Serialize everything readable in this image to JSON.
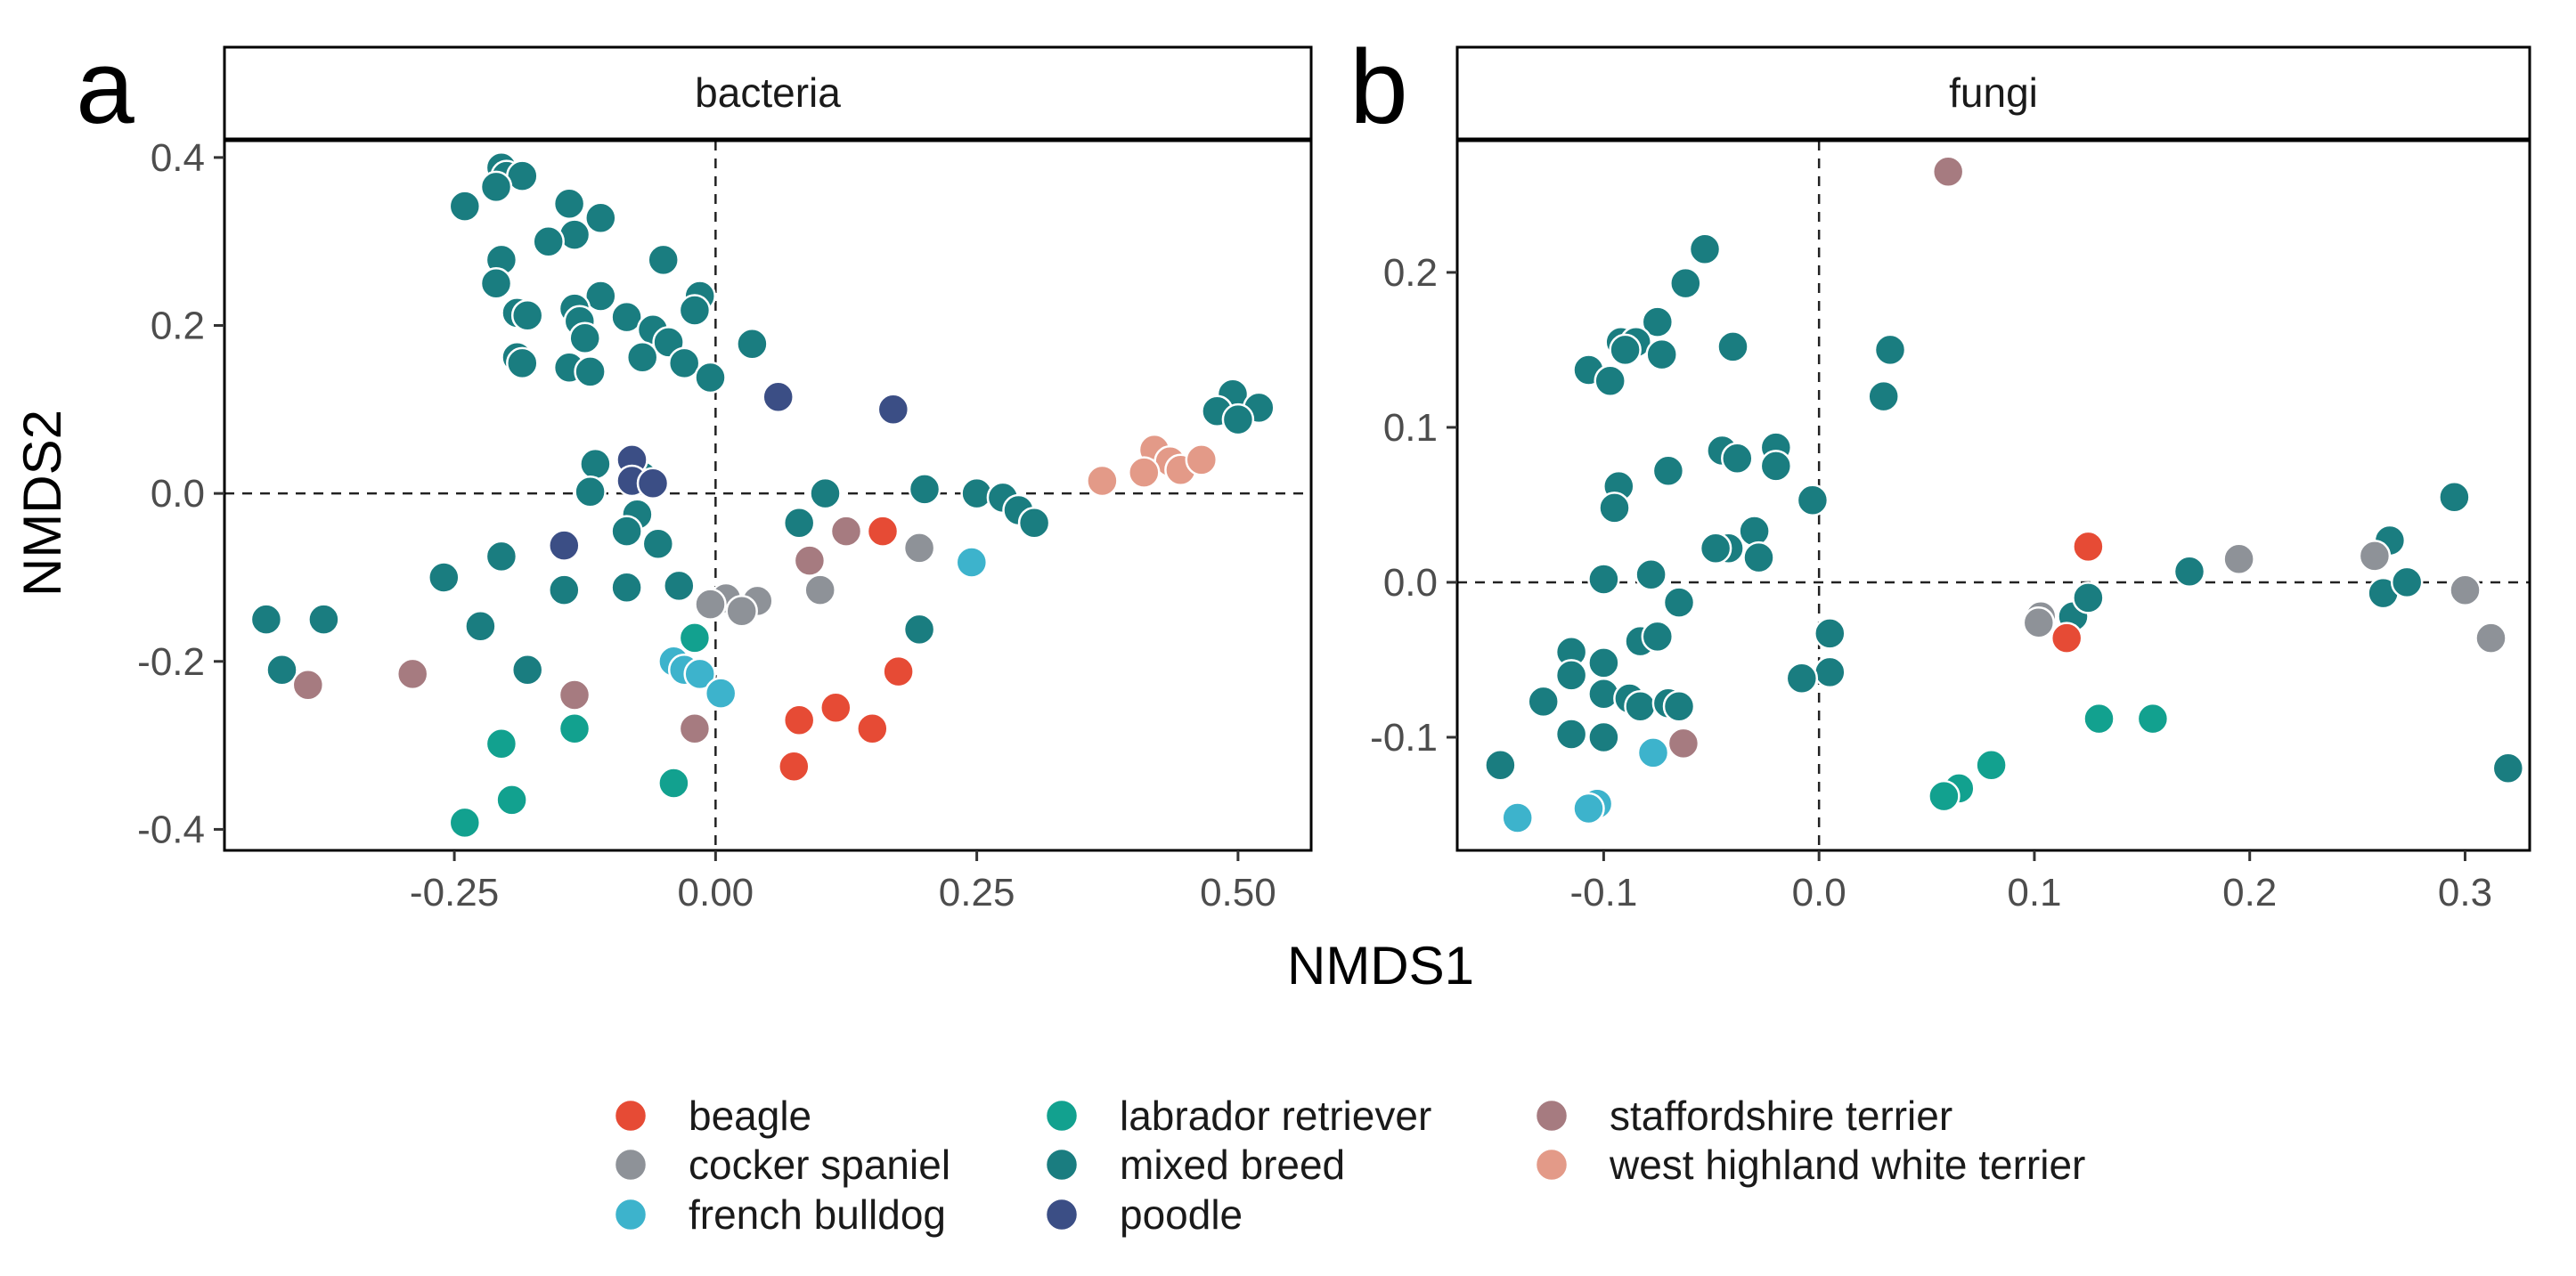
{
  "chart_data": {
    "type": "scatter",
    "xlabel": "NMDS1",
    "ylabel": "NMDS2",
    "legend_placement": "bottom",
    "groups": [
      {
        "key": "beagle",
        "label": "beagle",
        "color": "#E64B35"
      },
      {
        "key": "cocker",
        "label": "cocker spaniel",
        "color": "#8E9298"
      },
      {
        "key": "french",
        "label": "french bulldog",
        "color": "#3DB3CC"
      },
      {
        "key": "lab",
        "label": "labrador retriever",
        "color": "#12A18F"
      },
      {
        "key": "mixed",
        "label": "mixed breed",
        "color": "#1A7D80"
      },
      {
        "key": "poodle",
        "label": "poodle",
        "color": "#3B4E85"
      },
      {
        "key": "staff",
        "label": "staffordshire terrier",
        "color": "#A67B80"
      },
      {
        "key": "westie",
        "label": "west highland white terrier",
        "color": "#E39A88"
      }
    ],
    "panels": [
      {
        "letter": "a",
        "strip": "bacteria",
        "xlim": [
          -0.47,
          0.57
        ],
        "ylim": [
          -0.425,
          0.42
        ],
        "xticks": [
          -0.25,
          0.0,
          0.25,
          0.5
        ],
        "xtick_labels": [
          "-0.25",
          "0.00",
          "0.25",
          "0.50"
        ],
        "yticks": [
          -0.4,
          -0.2,
          0.0,
          0.2,
          0.4
        ],
        "ytick_labels": [
          "-0.4",
          "-0.2",
          "0.0",
          "0.2",
          "0.4"
        ],
        "points": [
          {
            "g": "mixed",
            "x": -0.205,
            "y": 0.388
          },
          {
            "g": "mixed",
            "x": -0.2,
            "y": 0.378
          },
          {
            "g": "mixed",
            "x": -0.185,
            "y": 0.378
          },
          {
            "g": "mixed",
            "x": -0.21,
            "y": 0.365
          },
          {
            "g": "mixed",
            "x": -0.24,
            "y": 0.342
          },
          {
            "g": "mixed",
            "x": -0.14,
            "y": 0.345
          },
          {
            "g": "mixed",
            "x": -0.11,
            "y": 0.328
          },
          {
            "g": "mixed",
            "x": -0.135,
            "y": 0.308
          },
          {
            "g": "mixed",
            "x": -0.16,
            "y": 0.3
          },
          {
            "g": "mixed",
            "x": -0.205,
            "y": 0.278
          },
          {
            "g": "mixed",
            "x": -0.05,
            "y": 0.278
          },
          {
            "g": "mixed",
            "x": -0.21,
            "y": 0.25
          },
          {
            "g": "mixed",
            "x": -0.11,
            "y": 0.235
          },
          {
            "g": "mixed",
            "x": -0.015,
            "y": 0.235
          },
          {
            "g": "mixed",
            "x": -0.135,
            "y": 0.22
          },
          {
            "g": "mixed",
            "x": -0.19,
            "y": 0.215
          },
          {
            "g": "mixed",
            "x": -0.18,
            "y": 0.212
          },
          {
            "g": "mixed",
            "x": -0.13,
            "y": 0.205
          },
          {
            "g": "mixed",
            "x": -0.085,
            "y": 0.21
          },
          {
            "g": "mixed",
            "x": -0.02,
            "y": 0.218
          },
          {
            "g": "mixed",
            "x": -0.06,
            "y": 0.195
          },
          {
            "g": "mixed",
            "x": -0.125,
            "y": 0.185
          },
          {
            "g": "mixed",
            "x": -0.045,
            "y": 0.18
          },
          {
            "g": "mixed",
            "x": 0.035,
            "y": 0.178
          },
          {
            "g": "mixed",
            "x": -0.07,
            "y": 0.162
          },
          {
            "g": "mixed",
            "x": -0.19,
            "y": 0.162
          },
          {
            "g": "mixed",
            "x": -0.185,
            "y": 0.155
          },
          {
            "g": "mixed",
            "x": -0.14,
            "y": 0.15
          },
          {
            "g": "mixed",
            "x": -0.12,
            "y": 0.145
          },
          {
            "g": "mixed",
            "x": -0.03,
            "y": 0.155
          },
          {
            "g": "mixed",
            "x": -0.005,
            "y": 0.138
          },
          {
            "g": "mixed",
            "x": 0.495,
            "y": 0.118
          },
          {
            "g": "mixed",
            "x": 0.52,
            "y": 0.102
          },
          {
            "g": "mixed",
            "x": 0.48,
            "y": 0.098
          },
          {
            "g": "mixed",
            "x": 0.5,
            "y": 0.088
          },
          {
            "g": "mixed",
            "x": -0.115,
            "y": 0.035
          },
          {
            "g": "mixed",
            "x": -0.12,
            "y": 0.002
          },
          {
            "g": "mixed",
            "x": -0.07,
            "y": 0.02
          },
          {
            "g": "mixed",
            "x": -0.075,
            "y": -0.025
          },
          {
            "g": "mixed",
            "x": -0.085,
            "y": -0.045
          },
          {
            "g": "mixed",
            "x": -0.055,
            "y": -0.06
          },
          {
            "g": "mixed",
            "x": 0.105,
            "y": 0.0
          },
          {
            "g": "mixed",
            "x": 0.2,
            "y": 0.005
          },
          {
            "g": "mixed",
            "x": 0.25,
            "y": 0.0
          },
          {
            "g": "mixed",
            "x": 0.275,
            "y": -0.005
          },
          {
            "g": "mixed",
            "x": 0.29,
            "y": -0.02
          },
          {
            "g": "mixed",
            "x": 0.305,
            "y": -0.035
          },
          {
            "g": "mixed",
            "x": 0.08,
            "y": -0.035
          },
          {
            "g": "mixed",
            "x": -0.205,
            "y": -0.075
          },
          {
            "g": "mixed",
            "x": -0.26,
            "y": -0.1
          },
          {
            "g": "mixed",
            "x": -0.145,
            "y": -0.115
          },
          {
            "g": "mixed",
            "x": -0.085,
            "y": -0.112
          },
          {
            "g": "mixed",
            "x": -0.035,
            "y": -0.11
          },
          {
            "g": "mixed",
            "x": -0.225,
            "y": -0.158
          },
          {
            "g": "mixed",
            "x": 0.195,
            "y": -0.162
          },
          {
            "g": "mixed",
            "x": -0.18,
            "y": -0.21
          },
          {
            "g": "mixed",
            "x": -0.43,
            "y": -0.15
          },
          {
            "g": "mixed",
            "x": -0.375,
            "y": -0.15
          },
          {
            "g": "mixed",
            "x": -0.415,
            "y": -0.21
          },
          {
            "g": "poodle",
            "x": 0.06,
            "y": 0.115
          },
          {
            "g": "poodle",
            "x": 0.17,
            "y": 0.1
          },
          {
            "g": "poodle",
            "x": -0.08,
            "y": 0.04
          },
          {
            "g": "poodle",
            "x": -0.08,
            "y": 0.015
          },
          {
            "g": "poodle",
            "x": -0.06,
            "y": 0.012
          },
          {
            "g": "poodle",
            "x": -0.145,
            "y": -0.062
          },
          {
            "g": "westie",
            "x": 0.37,
            "y": 0.015
          },
          {
            "g": "westie",
            "x": 0.42,
            "y": 0.052
          },
          {
            "g": "westie",
            "x": 0.435,
            "y": 0.038
          },
          {
            "g": "westie",
            "x": 0.41,
            "y": 0.025
          },
          {
            "g": "westie",
            "x": 0.445,
            "y": 0.028
          },
          {
            "g": "westie",
            "x": 0.465,
            "y": 0.04
          },
          {
            "g": "staff",
            "x": 0.125,
            "y": -0.045
          },
          {
            "g": "staff",
            "x": 0.09,
            "y": -0.08
          },
          {
            "g": "staff",
            "x": -0.39,
            "y": -0.228
          },
          {
            "g": "staff",
            "x": -0.29,
            "y": -0.215
          },
          {
            "g": "staff",
            "x": -0.135,
            "y": -0.24
          },
          {
            "g": "staff",
            "x": -0.02,
            "y": -0.28
          },
          {
            "g": "beagle",
            "x": 0.16,
            "y": -0.045
          },
          {
            "g": "beagle",
            "x": 0.175,
            "y": -0.212
          },
          {
            "g": "beagle",
            "x": 0.08,
            "y": -0.27
          },
          {
            "g": "beagle",
            "x": 0.115,
            "y": -0.255
          },
          {
            "g": "beagle",
            "x": 0.15,
            "y": -0.28
          },
          {
            "g": "beagle",
            "x": 0.075,
            "y": -0.325
          },
          {
            "g": "cocker",
            "x": 0.195,
            "y": -0.065
          },
          {
            "g": "cocker",
            "x": 0.1,
            "y": -0.115
          },
          {
            "g": "cocker",
            "x": 0.01,
            "y": -0.125
          },
          {
            "g": "cocker",
            "x": 0.04,
            "y": -0.128
          },
          {
            "g": "cocker",
            "x": -0.005,
            "y": -0.132
          },
          {
            "g": "cocker",
            "x": 0.025,
            "y": -0.14
          },
          {
            "g": "french",
            "x": 0.245,
            "y": -0.082
          },
          {
            "g": "french",
            "x": -0.04,
            "y": -0.2
          },
          {
            "g": "french",
            "x": -0.03,
            "y": -0.21
          },
          {
            "g": "french",
            "x": -0.015,
            "y": -0.215
          },
          {
            "g": "french",
            "x": 0.005,
            "y": -0.238
          },
          {
            "g": "lab",
            "x": -0.02,
            "y": -0.172
          },
          {
            "g": "lab",
            "x": -0.135,
            "y": -0.28
          },
          {
            "g": "lab",
            "x": -0.205,
            "y": -0.298
          },
          {
            "g": "lab",
            "x": -0.195,
            "y": -0.365
          },
          {
            "g": "lab",
            "x": -0.24,
            "y": -0.392
          },
          {
            "g": "lab",
            "x": -0.04,
            "y": -0.345
          }
        ]
      },
      {
        "letter": "b",
        "strip": "fungi",
        "xlim": [
          -0.168,
          0.33
        ],
        "ylim": [
          -0.173,
          0.285
        ],
        "xticks": [
          -0.1,
          0.0,
          0.1,
          0.2,
          0.3
        ],
        "xtick_labels": [
          "-0.1",
          "0.0",
          "0.1",
          "0.2",
          "0.3"
        ],
        "yticks": [
          -0.1,
          0.0,
          0.1,
          0.2
        ],
        "ytick_labels": [
          "-0.1",
          "0.0",
          "0.1",
          "0.2"
        ],
        "points": [
          {
            "g": "staff",
            "x": 0.06,
            "y": 0.265
          },
          {
            "g": "staff",
            "x": -0.063,
            "y": -0.104
          },
          {
            "g": "mixed",
            "x": -0.053,
            "y": 0.215
          },
          {
            "g": "mixed",
            "x": -0.062,
            "y": 0.193
          },
          {
            "g": "mixed",
            "x": -0.075,
            "y": 0.168
          },
          {
            "g": "mixed",
            "x": -0.092,
            "y": 0.155
          },
          {
            "g": "mixed",
            "x": -0.085,
            "y": 0.155
          },
          {
            "g": "mixed",
            "x": -0.09,
            "y": 0.15
          },
          {
            "g": "mixed",
            "x": -0.073,
            "y": 0.147
          },
          {
            "g": "mixed",
            "x": -0.04,
            "y": 0.152
          },
          {
            "g": "mixed",
            "x": -0.107,
            "y": 0.137
          },
          {
            "g": "mixed",
            "x": -0.097,
            "y": 0.13
          },
          {
            "g": "mixed",
            "x": 0.033,
            "y": 0.15
          },
          {
            "g": "mixed",
            "x": 0.03,
            "y": 0.12
          },
          {
            "g": "mixed",
            "x": -0.045,
            "y": 0.085
          },
          {
            "g": "mixed",
            "x": -0.038,
            "y": 0.08
          },
          {
            "g": "mixed",
            "x": -0.02,
            "y": 0.087
          },
          {
            "g": "mixed",
            "x": -0.02,
            "y": 0.075
          },
          {
            "g": "mixed",
            "x": -0.07,
            "y": 0.072
          },
          {
            "g": "mixed",
            "x": -0.093,
            "y": 0.062
          },
          {
            "g": "mixed",
            "x": -0.095,
            "y": 0.048
          },
          {
            "g": "mixed",
            "x": -0.003,
            "y": 0.053
          },
          {
            "g": "mixed",
            "x": -0.042,
            "y": 0.022
          },
          {
            "g": "mixed",
            "x": -0.048,
            "y": 0.022
          },
          {
            "g": "mixed",
            "x": -0.03,
            "y": 0.033
          },
          {
            "g": "mixed",
            "x": -0.028,
            "y": 0.016
          },
          {
            "g": "mixed",
            "x": -0.1,
            "y": 0.002
          },
          {
            "g": "mixed",
            "x": -0.078,
            "y": 0.005
          },
          {
            "g": "mixed",
            "x": -0.065,
            "y": -0.013
          },
          {
            "g": "mixed",
            "x": -0.083,
            "y": -0.038
          },
          {
            "g": "mixed",
            "x": -0.075,
            "y": -0.035
          },
          {
            "g": "mixed",
            "x": -0.115,
            "y": -0.045
          },
          {
            "g": "mixed",
            "x": -0.1,
            "y": -0.052
          },
          {
            "g": "mixed",
            "x": -0.115,
            "y": -0.06
          },
          {
            "g": "mixed",
            "x": -0.1,
            "y": -0.072
          },
          {
            "g": "mixed",
            "x": -0.088,
            "y": -0.075
          },
          {
            "g": "mixed",
            "x": -0.083,
            "y": -0.08
          },
          {
            "g": "mixed",
            "x": -0.07,
            "y": -0.078
          },
          {
            "g": "mixed",
            "x": -0.065,
            "y": -0.08
          },
          {
            "g": "mixed",
            "x": -0.128,
            "y": -0.077
          },
          {
            "g": "mixed",
            "x": -0.115,
            "y": -0.098
          },
          {
            "g": "mixed",
            "x": -0.1,
            "y": -0.1
          },
          {
            "g": "mixed",
            "x": -0.148,
            "y": -0.118
          },
          {
            "g": "mixed",
            "x": 0.005,
            "y": -0.033
          },
          {
            "g": "mixed",
            "x": 0.005,
            "y": -0.058
          },
          {
            "g": "mixed",
            "x": -0.008,
            "y": -0.062
          },
          {
            "g": "mixed",
            "x": 0.118,
            "y": -0.022
          },
          {
            "g": "mixed",
            "x": 0.125,
            "y": -0.01
          },
          {
            "g": "mixed",
            "x": 0.172,
            "y": 0.007
          },
          {
            "g": "mixed",
            "x": 0.265,
            "y": 0.027
          },
          {
            "g": "mixed",
            "x": 0.262,
            "y": -0.007
          },
          {
            "g": "mixed",
            "x": 0.273,
            "y": 0.0
          },
          {
            "g": "mixed",
            "x": 0.295,
            "y": 0.055
          },
          {
            "g": "mixed",
            "x": 0.32,
            "y": -0.12
          },
          {
            "g": "beagle",
            "x": 0.125,
            "y": 0.023
          },
          {
            "g": "beagle",
            "x": 0.115,
            "y": -0.036
          },
          {
            "g": "cocker",
            "x": 0.195,
            "y": 0.015
          },
          {
            "g": "cocker",
            "x": 0.258,
            "y": 0.017
          },
          {
            "g": "cocker",
            "x": 0.3,
            "y": -0.005
          },
          {
            "g": "cocker",
            "x": 0.312,
            "y": -0.036
          },
          {
            "g": "cocker",
            "x": 0.103,
            "y": -0.022
          },
          {
            "g": "cocker",
            "x": 0.102,
            "y": -0.026
          },
          {
            "g": "lab",
            "x": 0.13,
            "y": -0.088
          },
          {
            "g": "lab",
            "x": 0.155,
            "y": -0.088
          },
          {
            "g": "lab",
            "x": 0.08,
            "y": -0.118
          },
          {
            "g": "lab",
            "x": 0.065,
            "y": -0.133
          },
          {
            "g": "lab",
            "x": 0.058,
            "y": -0.138
          },
          {
            "g": "french",
            "x": -0.077,
            "y": -0.11
          },
          {
            "g": "french",
            "x": -0.103,
            "y": -0.143
          },
          {
            "g": "french",
            "x": -0.107,
            "y": -0.146
          },
          {
            "g": "french",
            "x": -0.14,
            "y": -0.152
          }
        ]
      }
    ]
  }
}
